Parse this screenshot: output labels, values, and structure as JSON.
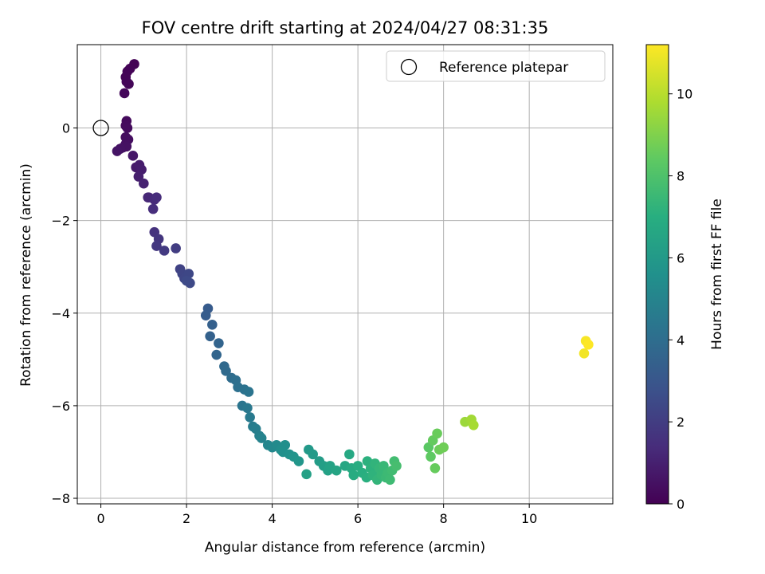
{
  "chart_data": {
    "type": "scatter",
    "title": "FOV centre drift starting at 2024/04/27 08:31:35",
    "xlabel": "Angular distance from reference (arcmin)",
    "ylabel": "Rotation from reference (arcmin)",
    "xlim": [
      -0.55,
      11.95
    ],
    "ylim": [
      -8.12,
      1.8
    ],
    "xticks": [
      0,
      2,
      4,
      6,
      8,
      10
    ],
    "yticks": [
      0,
      -2,
      -4,
      -6,
      -8
    ],
    "xtick_labels": [
      "0",
      "2",
      "4",
      "6",
      "8",
      "10"
    ],
    "ytick_labels": [
      "0",
      "−2",
      "−4",
      "−6",
      "−8"
    ],
    "grid": true,
    "colormap": "viridis",
    "colorbar": {
      "label": "Hours from first FF file",
      "range": [
        0,
        11.2
      ],
      "ticks": [
        0,
        2,
        4,
        6,
        8,
        10
      ],
      "tick_labels": [
        "0",
        "2",
        "4",
        "6",
        "8",
        "10"
      ]
    },
    "legend": {
      "position": "top-right",
      "entries": [
        "Reference platepar"
      ]
    },
    "reference_point": {
      "x": 0,
      "y": 0,
      "marker": "open-circle"
    },
    "series": [
      {
        "x": [
          0.78,
          0.68,
          0.62,
          0.58,
          0.6,
          0.65,
          0.55,
          0.6,
          0.58,
          0.62,
          0.58,
          0.64,
          0.58,
          0.6,
          0.52,
          0.45,
          0.38,
          0.75,
          0.82,
          0.9,
          0.95,
          0.88,
          1.0,
          1.1,
          1.12,
          1.25,
          1.3,
          1.22,
          1.25,
          1.35,
          1.3,
          1.48,
          1.75,
          1.85,
          1.9,
          1.95,
          2.05,
          2.08,
          2.0,
          2.5,
          2.45,
          2.6,
          2.55,
          2.75,
          2.7,
          2.88,
          2.92,
          3.05,
          3.15,
          3.2,
          3.35,
          3.45,
          3.3,
          3.42,
          3.48,
          3.55,
          3.62,
          3.7,
          3.75,
          3.9,
          4.0,
          4.1,
          4.2,
          4.3,
          4.25,
          4.4,
          4.5,
          4.62,
          4.8,
          4.85,
          4.95,
          5.1,
          5.2,
          5.3,
          5.35,
          5.5,
          5.7,
          5.8,
          5.85,
          5.9,
          6.0,
          6.1,
          6.2,
          6.22,
          6.3,
          6.35,
          6.4,
          6.45,
          6.5,
          6.55,
          6.6,
          6.65,
          6.7,
          6.75,
          6.8,
          6.85,
          6.9,
          7.65,
          7.7,
          7.75,
          7.8,
          7.85,
          7.9,
          8.0,
          8.5,
          8.65,
          8.7,
          11.28,
          11.32,
          11.38
        ],
        "y": [
          1.38,
          1.28,
          1.22,
          1.1,
          1.0,
          0.95,
          0.75,
          0.15,
          0.05,
          0.0,
          -0.2,
          -0.25,
          -0.35,
          -0.4,
          -0.42,
          -0.45,
          -0.5,
          -0.6,
          -0.85,
          -0.8,
          -0.9,
          -1.05,
          -1.2,
          -1.5,
          -1.5,
          -1.55,
          -1.5,
          -1.75,
          -2.25,
          -2.4,
          -2.55,
          -2.65,
          -2.6,
          -3.05,
          -3.15,
          -3.25,
          -3.15,
          -3.35,
          -3.3,
          -3.9,
          -4.05,
          -4.25,
          -4.5,
          -4.65,
          -4.9,
          -5.15,
          -5.25,
          -5.4,
          -5.45,
          -5.6,
          -5.65,
          -5.7,
          -6.0,
          -6.05,
          -6.25,
          -6.45,
          -6.5,
          -6.65,
          -6.7,
          -6.85,
          -6.9,
          -6.85,
          -6.95,
          -6.85,
          -7.0,
          -7.05,
          -7.1,
          -7.2,
          -7.48,
          -6.95,
          -7.05,
          -7.2,
          -7.3,
          -7.4,
          -7.3,
          -7.4,
          -7.3,
          -7.05,
          -7.35,
          -7.5,
          -7.3,
          -7.45,
          -7.55,
          -7.2,
          -7.35,
          -7.5,
          -7.25,
          -7.6,
          -7.35,
          -7.5,
          -7.3,
          -7.55,
          -7.45,
          -7.6,
          -7.4,
          -7.2,
          -7.3,
          -6.9,
          -7.1,
          -6.75,
          -7.35,
          -6.6,
          -6.95,
          -6.9,
          -6.35,
          -6.3,
          -6.42,
          -4.87,
          -4.6,
          -4.68
        ],
        "hours": [
          0.05,
          0.08,
          0.1,
          0.12,
          0.14,
          0.16,
          0.2,
          0.3,
          0.32,
          0.35,
          0.4,
          0.42,
          0.45,
          0.5,
          0.52,
          0.55,
          0.6,
          0.7,
          0.8,
          0.85,
          0.9,
          0.95,
          1.05,
          1.2,
          1.25,
          1.35,
          1.4,
          1.45,
          1.6,
          1.7,
          1.8,
          1.9,
          2.0,
          2.2,
          2.3,
          2.35,
          2.4,
          2.45,
          2.5,
          3.2,
          3.25,
          3.4,
          3.45,
          3.6,
          3.65,
          3.8,
          3.85,
          3.95,
          4.05,
          4.1,
          4.2,
          4.3,
          4.35,
          4.45,
          4.55,
          4.65,
          4.75,
          4.85,
          4.95,
          5.1,
          5.2,
          5.3,
          5.4,
          5.5,
          5.55,
          5.65,
          5.75,
          5.85,
          6.3,
          6.0,
          6.05,
          6.15,
          6.25,
          6.35,
          6.4,
          6.5,
          6.6,
          6.7,
          6.75,
          6.85,
          6.9,
          7.0,
          7.05,
          7.1,
          7.15,
          7.2,
          7.25,
          7.3,
          7.35,
          7.4,
          7.45,
          7.5,
          7.55,
          7.6,
          7.65,
          7.7,
          7.8,
          8.3,
          8.4,
          8.5,
          8.55,
          8.6,
          8.65,
          8.7,
          9.5,
          9.6,
          9.7,
          11.0,
          11.1,
          11.2
        ]
      }
    ]
  }
}
